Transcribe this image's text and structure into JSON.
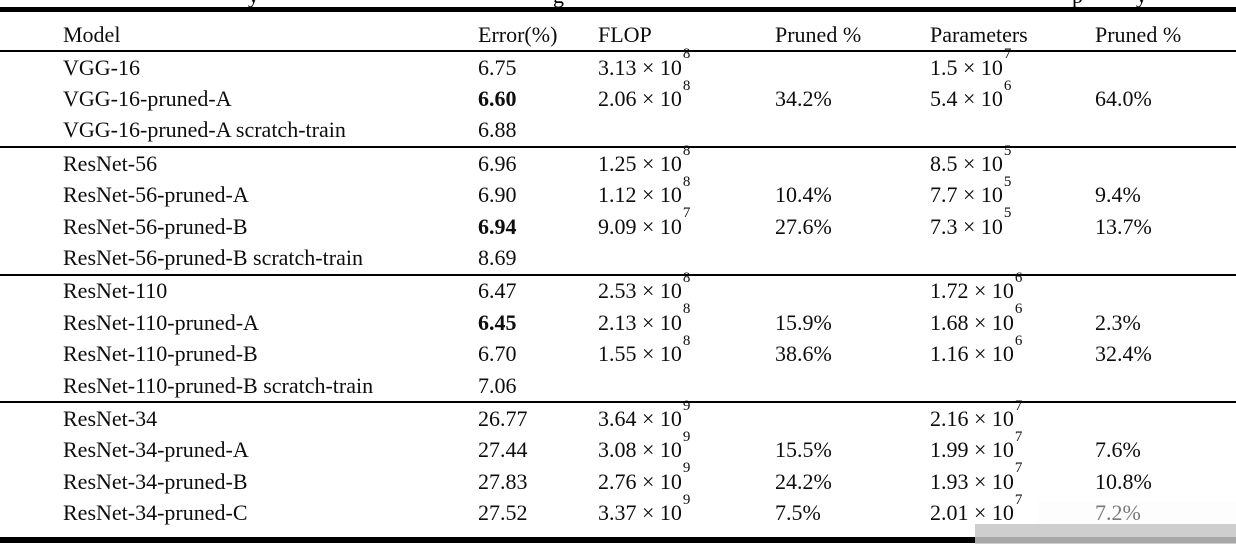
{
  "caption_fragments": {
    "f1": "y",
    "f2": "g",
    "f3": "p",
    "f4": "y"
  },
  "artifacts": {
    "smudge_color": "#c6c6c6"
  },
  "table": {
    "columns": [
      "Model",
      "Error(%)",
      "FLOP",
      "Pruned %",
      "Parameters",
      "Pruned %"
    ],
    "sec": [
      {
        "rows": [
          {
            "model": "VGG-16",
            "err": "6.75",
            "errw": "normal",
            "flop": "3.13 × 10",
            "flope": "8",
            "fp": "",
            "par": "1.5 × 10",
            "pare": "7",
            "pp": ""
          },
          {
            "model": "VGG-16-pruned-A",
            "err": "6.60",
            "errw": "bold",
            "flop": "2.06 × 10",
            "flope": "8",
            "fp": "34.2%",
            "par": "5.4 × 10",
            "pare": "6",
            "pp": "64.0%"
          },
          {
            "model": "VGG-16-pruned-A scratch-train",
            "err": "6.88",
            "errw": "normal",
            "flop": "",
            "flope": "",
            "fp": "",
            "par": "",
            "pare": "",
            "pp": ""
          }
        ]
      },
      {
        "rows": [
          {
            "model": "ResNet-56",
            "err": "6.96",
            "errw": "normal",
            "flop": "1.25 × 10",
            "flope": "8",
            "fp": "",
            "par": "8.5 × 10",
            "pare": "5",
            "pp": ""
          },
          {
            "model": "ResNet-56-pruned-A",
            "err": "6.90",
            "errw": "normal",
            "flop": "1.12 × 10",
            "flope": "8",
            "fp": "10.4%",
            "par": "7.7 × 10",
            "pare": "5",
            "pp": "9.4%"
          },
          {
            "model": "ResNet-56-pruned-B",
            "err": "6.94",
            "errw": "bold",
            "flop": "9.09 × 10",
            "flope": "7",
            "fp": "27.6%",
            "par": "7.3 × 10",
            "pare": "5",
            "pp": "13.7%"
          },
          {
            "model": "ResNet-56-pruned-B scratch-train",
            "err": "8.69",
            "errw": "normal",
            "flop": "",
            "flope": "",
            "fp": "",
            "par": "",
            "pare": "",
            "pp": ""
          }
        ]
      },
      {
        "rows": [
          {
            "model": "ResNet-110",
            "err": "6.47",
            "errw": "normal",
            "flop": "2.53 × 10",
            "flope": "8",
            "fp": "",
            "par": "1.72 × 10",
            "pare": "6",
            "pp": ""
          },
          {
            "model": "ResNet-110-pruned-A",
            "err": "6.45",
            "errw": "bold",
            "flop": "2.13 × 10",
            "flope": "8",
            "fp": "15.9%",
            "par": "1.68 × 10",
            "pare": "6",
            "pp": "2.3%"
          },
          {
            "model": "ResNet-110-pruned-B",
            "err": "6.70",
            "errw": "normal",
            "flop": "1.55 × 10",
            "flope": "8",
            "fp": "38.6%",
            "par": "1.16 × 10",
            "pare": "6",
            "pp": "32.4%"
          },
          {
            "model": "ResNet-110-pruned-B scratch-train",
            "err": "7.06",
            "errw": "normal",
            "flop": "",
            "flope": "",
            "fp": "",
            "par": "",
            "pare": "",
            "pp": ""
          }
        ]
      },
      {
        "rows": [
          {
            "model": "ResNet-34",
            "err": "26.77",
            "errw": "normal",
            "flop": "3.64 × 10",
            "flope": "9",
            "fp": "",
            "par": "2.16 × 10",
            "pare": "7",
            "pp": ""
          },
          {
            "model": "ResNet-34-pruned-A",
            "err": "27.44",
            "errw": "normal",
            "flop": "3.08 × 10",
            "flope": "9",
            "fp": "15.5%",
            "par": "1.99 × 10",
            "pare": "7",
            "pp": "7.6%"
          },
          {
            "model": "ResNet-34-pruned-B",
            "err": "27.83",
            "errw": "normal",
            "flop": "2.76 × 10",
            "flope": "9",
            "fp": "24.2%",
            "par": "1.93 × 10",
            "pare": "7",
            "pp": "10.8%"
          },
          {
            "model": "ResNet-34-pruned-C",
            "err": "27.52",
            "errw": "normal",
            "flop": "3.37 × 10",
            "flope": "9",
            "fp": "7.5%",
            "par": "2.01 × 10",
            "pare": "7",
            "pp": "7.2%"
          }
        ]
      }
    ]
  }
}
